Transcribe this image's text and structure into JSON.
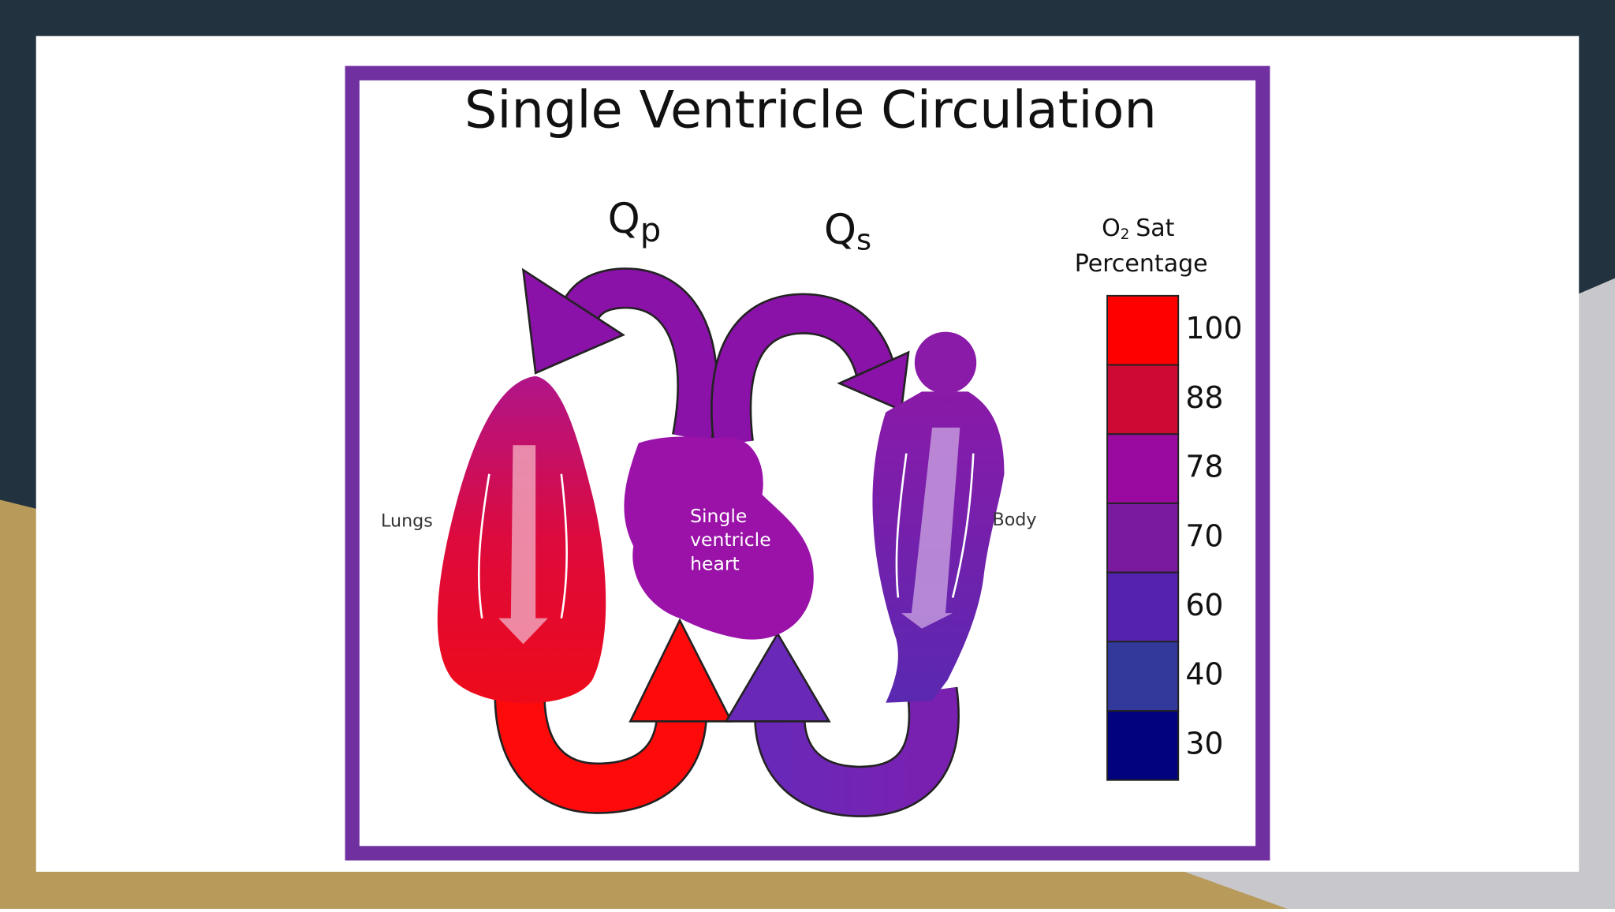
{
  "title": "Single Ventricle Circulation",
  "flows": [
    {
      "main": "Q",
      "sub": "p"
    },
    {
      "main": "Q",
      "sub": "s"
    }
  ],
  "labels": {
    "lungs": "Lungs",
    "body": "Body",
    "heart": [
      "Single",
      "ventricle",
      "heart"
    ]
  },
  "legend": {
    "title": [
      {
        "main": "O",
        "sub": "2",
        "rest": "Sat"
      },
      "Percentage"
    ],
    "items": [
      {
        "value": 100,
        "color": "#ff0000"
      },
      {
        "value": 88,
        "color": "#cc0a33"
      },
      {
        "value": 78,
        "color": "#9a0aa0"
      },
      {
        "value": 70,
        "color": "#7a1a9e"
      },
      {
        "value": 60,
        "color": "#5522b0"
      },
      {
        "value": 40,
        "color": "#33399a"
      },
      {
        "value": 30,
        "color": "#02027e"
      }
    ]
  }
}
